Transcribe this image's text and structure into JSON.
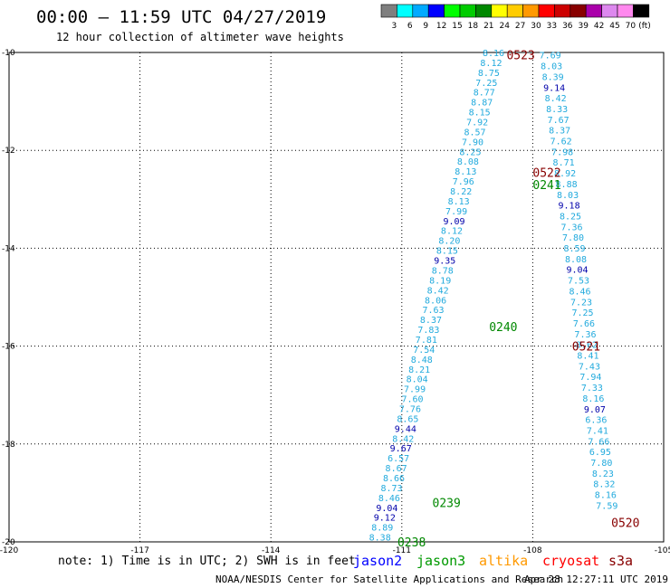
{
  "header": {
    "title": "00:00 – 11:59 UTC 04/27/2019",
    "subtitle": "12 hour collection of altimeter wave heights"
  },
  "legend": {
    "unit": "(ft)",
    "bins": [
      {
        "label": "3",
        "color": "#7f7f7f"
      },
      {
        "label": "6",
        "color": "#00ffff"
      },
      {
        "label": "9",
        "color": "#00aaff"
      },
      {
        "label": "12",
        "color": "#0000ff"
      },
      {
        "label": "15",
        "color": "#00ff00"
      },
      {
        "label": "18",
        "color": "#00cc00"
      },
      {
        "label": "21",
        "color": "#008800"
      },
      {
        "label": "24",
        "color": "#ffff00"
      },
      {
        "label": "27",
        "color": "#ffcc00"
      },
      {
        "label": "30",
        "color": "#ff9900"
      },
      {
        "label": "33",
        "color": "#ff0000"
      },
      {
        "label": "36",
        "color": "#cc0000"
      },
      {
        "label": "39",
        "color": "#880000"
      },
      {
        "label": "42",
        "color": "#aa00aa"
      },
      {
        "label": "45",
        "color": "#dd88ee"
      },
      {
        "label": "70",
        "color": "#ff88ee"
      },
      {
        "label": "",
        "color": "#000000"
      }
    ]
  },
  "chart_data": {
    "type": "scatter",
    "title": "00:00 – 11:59 UTC 04/27/2019",
    "subtitle": "12 hour collection of altimeter wave heights",
    "xlim": [
      -120,
      -105
    ],
    "ylim": [
      -20,
      -10
    ],
    "x_ticks": [
      "-120",
      "-117",
      "-114",
      "-111",
      "-108",
      "-105"
    ],
    "y_ticks": [
      "-10",
      "-12",
      "-14",
      "-16",
      "-18",
      "-20"
    ],
    "grid": true,
    "colors": {
      "light": "#22aadd",
      "dark": "#0000aa",
      "green": "#008800",
      "maroon": "#880000"
    },
    "series": [
      {
        "name": "jason3",
        "start": [
          -108.9,
          -10.0
        ],
        "end": [
          -111.5,
          -19.9
        ],
        "values": [
          "8.16",
          "8.12",
          "8.75",
          "7.25",
          "8.77",
          "8.87",
          "8.15",
          "7.92",
          "8.57",
          "7.90",
          "8.25",
          "8.08",
          "8.13",
          "7.96",
          "8.22",
          "8.13",
          "7.99",
          "9.09",
          "8.12",
          "8.20",
          "8.15",
          "9.35",
          "8.78",
          "8.19",
          "8.42",
          "8.06",
          "7.63",
          "8.37",
          "7.83",
          "7.81",
          "7.54",
          "8.48",
          "8.21",
          "8.04",
          "7.99",
          "7.60",
          "7.76",
          "8.65",
          "9.44",
          "8.42",
          "9.67",
          "6.57",
          "8.67",
          "8.66",
          "8.73",
          "8.46",
          "9.04",
          "9.12",
          "8.89",
          "8.38"
        ],
        "dark": [
          "9.09",
          "9.35",
          "9.44",
          "9.67",
          "9.04",
          "9.12"
        ]
      },
      {
        "name": "cryosat",
        "start": [
          -107.6,
          -10.05
        ],
        "end": [
          -106.3,
          -19.25
        ],
        "values": [
          "7.69",
          "8.03",
          "8.39",
          "9.14",
          "8.42",
          "8.33",
          "7.67",
          "8.37",
          "7.62",
          "7.98",
          "8.71",
          "8.92",
          "8.88",
          "8.03",
          "9.18",
          "8.25",
          "7.36",
          "7.80",
          "8.59",
          "8.08",
          "9.04",
          "7.53",
          "8.46",
          "7.23",
          "7.25",
          "7.66",
          "7.36",
          "8.62",
          "8.41",
          "7.43",
          "7.94",
          "7.33",
          "8.16",
          "9.07",
          "6.36",
          "7.41",
          "7.66",
          "6.95",
          "7.80",
          "8.23",
          "8.32",
          "8.16",
          "7.59"
        ],
        "dark": [
          "9.14",
          "9.18",
          "9.04",
          "9.07"
        ]
      }
    ],
    "time_labels": [
      {
        "text": "0523",
        "x": -108.6,
        "y": -10.05,
        "color": "maroon"
      },
      {
        "text": "0522",
        "x": -108.0,
        "y": -12.45,
        "color": "maroon"
      },
      {
        "text": "0241",
        "x": -108.0,
        "y": -12.7,
        "color": "green"
      },
      {
        "text": "0240",
        "x": -109.0,
        "y": -15.6,
        "color": "green"
      },
      {
        "text": "0521",
        "x": -107.1,
        "y": -16.0,
        "color": "maroon"
      },
      {
        "text": "0239",
        "x": -110.3,
        "y": -19.2,
        "color": "green"
      },
      {
        "text": "0520",
        "x": -106.2,
        "y": -19.6,
        "color": "maroon"
      },
      {
        "text": "0238",
        "x": -111.1,
        "y": -20.0,
        "color": "green"
      }
    ]
  },
  "footer": {
    "note": "note: 1) Time is in UTC; 2) SWH is in feet",
    "satellites": [
      {
        "name": "jason2",
        "color": "#0000ff"
      },
      {
        "name": "jason3",
        "color": "#009900"
      },
      {
        "name": "altika",
        "color": "#ff9900"
      },
      {
        "name": "cryosat",
        "color": "#ff0000"
      },
      {
        "name": "s3a",
        "color": "#880000"
      }
    ],
    "credit": "NOAA/NESDIS Center for Satellite Applications and Research",
    "timestamp": "Apr 28 12:27:11 UTC 2019"
  }
}
